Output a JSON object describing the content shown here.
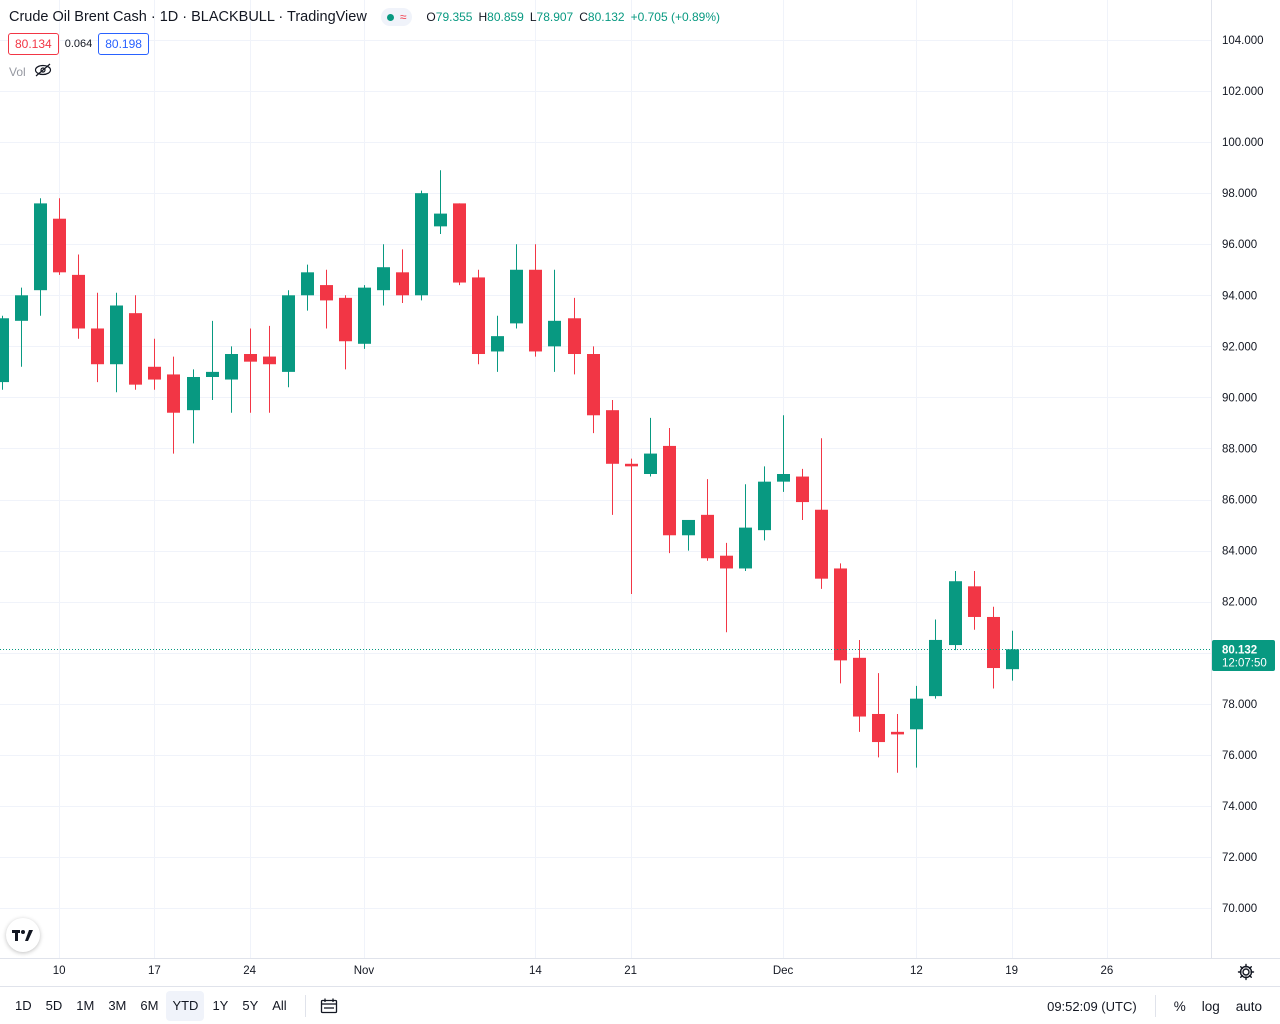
{
  "legend": {
    "symbol": "Crude Oil Brent Cash · 1D · BLACKBULL · TradingView",
    "status_wave": "≈",
    "open_label": "O",
    "open": "79.355",
    "high_label": "H",
    "high": "80.859",
    "low_label": "L",
    "low": "78.907",
    "close_label": "C",
    "close": "80.132",
    "change": "+0.705 (+0.89%)"
  },
  "quote": {
    "bid": "80.134",
    "spread": "0.064",
    "ask": "80.198"
  },
  "volume": {
    "label": "Vol",
    "icon": "eye-crossed-icon"
  },
  "colors": {
    "up": "#089981",
    "down": "#f23645",
    "grid": "#f0f3fa",
    "axis_text": "#131722",
    "accent": "#2962ff"
  },
  "chart_data": {
    "type": "candlestick",
    "interval": "1D",
    "ylim": [
      68.5,
      105
    ],
    "y_ticks": [
      "104.000",
      "102.000",
      "100.000",
      "98.000",
      "96.000",
      "94.000",
      "92.000",
      "90.000",
      "88.000",
      "86.000",
      "84.000",
      "82.000",
      "80.000",
      "78.000",
      "76.000",
      "74.000",
      "72.000",
      "70.000"
    ],
    "y_tick_values": [
      104,
      102,
      100,
      98,
      96,
      94,
      92,
      90,
      88,
      86,
      84,
      82,
      80,
      78,
      76,
      74,
      72,
      70
    ],
    "x_ticks": [
      {
        "label": "10",
        "index": 3
      },
      {
        "label": "17",
        "index": 8
      },
      {
        "label": "24",
        "index": 13
      },
      {
        "label": "Nov",
        "index": 19
      },
      {
        "label": "14",
        "index": 28
      },
      {
        "label": "21",
        "index": 33
      },
      {
        "label": "Dec",
        "index": 41
      },
      {
        "label": "12",
        "index": 48
      },
      {
        "label": "19",
        "index": 53
      },
      {
        "label": "26",
        "index": 58
      }
    ],
    "candles": [
      {
        "o": 90.6,
        "h": 93.2,
        "l": 90.3,
        "c": 93.1
      },
      {
        "o": 93.0,
        "h": 94.3,
        "l": 91.2,
        "c": 94.0
      },
      {
        "o": 94.2,
        "h": 97.8,
        "l": 93.2,
        "c": 97.6
      },
      {
        "o": 97.0,
        "h": 97.8,
        "l": 94.8,
        "c": 94.9
      },
      {
        "o": 94.8,
        "h": 95.6,
        "l": 92.3,
        "c": 92.7
      },
      {
        "o": 92.7,
        "h": 94.1,
        "l": 90.6,
        "c": 91.3
      },
      {
        "o": 91.3,
        "h": 94.1,
        "l": 90.2,
        "c": 93.6
      },
      {
        "o": 93.3,
        "h": 94.0,
        "l": 90.3,
        "c": 90.5
      },
      {
        "o": 91.2,
        "h": 92.3,
        "l": 90.3,
        "c": 90.7
      },
      {
        "o": 90.9,
        "h": 91.6,
        "l": 87.8,
        "c": 89.4
      },
      {
        "o": 89.5,
        "h": 91.1,
        "l": 88.2,
        "c": 90.8
      },
      {
        "o": 90.8,
        "h": 93.0,
        "l": 89.9,
        "c": 91.0
      },
      {
        "o": 90.7,
        "h": 92.0,
        "l": 89.4,
        "c": 91.7
      },
      {
        "o": 91.7,
        "h": 92.7,
        "l": 89.4,
        "c": 91.4
      },
      {
        "o": 91.6,
        "h": 92.8,
        "l": 89.4,
        "c": 91.3
      },
      {
        "o": 91.0,
        "h": 94.2,
        "l": 90.4,
        "c": 94.0
      },
      {
        "o": 94.0,
        "h": 95.2,
        "l": 93.4,
        "c": 94.9
      },
      {
        "o": 94.4,
        "h": 95.0,
        "l": 92.7,
        "c": 93.8
      },
      {
        "o": 93.9,
        "h": 94.0,
        "l": 91.1,
        "c": 92.2
      },
      {
        "o": 92.1,
        "h": 94.4,
        "l": 91.9,
        "c": 94.3
      },
      {
        "o": 94.2,
        "h": 96.0,
        "l": 93.6,
        "c": 95.1
      },
      {
        "o": 94.9,
        "h": 95.8,
        "l": 93.7,
        "c": 94.0
      },
      {
        "o": 94.0,
        "h": 98.1,
        "l": 93.8,
        "c": 98.0
      },
      {
        "o": 96.7,
        "h": 98.9,
        "l": 96.4,
        "c": 97.2
      },
      {
        "o": 97.6,
        "h": 97.6,
        "l": 94.4,
        "c": 94.5
      },
      {
        "o": 94.7,
        "h": 95.0,
        "l": 91.3,
        "c": 91.7
      },
      {
        "o": 91.8,
        "h": 93.2,
        "l": 91.0,
        "c": 92.4
      },
      {
        "o": 92.9,
        "h": 96.0,
        "l": 92.7,
        "c": 95.0
      },
      {
        "o": 95.0,
        "h": 96.0,
        "l": 91.6,
        "c": 91.8
      },
      {
        "o": 92.0,
        "h": 95.0,
        "l": 91.0,
        "c": 93.0
      },
      {
        "o": 93.1,
        "h": 93.9,
        "l": 90.9,
        "c": 91.7
      },
      {
        "o": 91.7,
        "h": 92.0,
        "l": 88.6,
        "c": 89.3
      },
      {
        "o": 89.5,
        "h": 89.9,
        "l": 85.4,
        "c": 87.4
      },
      {
        "o": 87.4,
        "h": 87.6,
        "l": 82.3,
        "c": 87.3
      },
      {
        "o": 87.0,
        "h": 89.2,
        "l": 86.9,
        "c": 87.8
      },
      {
        "o": 88.1,
        "h": 88.8,
        "l": 83.9,
        "c": 84.6
      },
      {
        "o": 84.6,
        "h": 85.2,
        "l": 84.0,
        "c": 85.2
      },
      {
        "o": 85.4,
        "h": 86.8,
        "l": 83.6,
        "c": 83.7
      },
      {
        "o": 83.8,
        "h": 84.3,
        "l": 80.8,
        "c": 83.3
      },
      {
        "o": 83.3,
        "h": 86.6,
        "l": 83.2,
        "c": 84.9
      },
      {
        "o": 84.8,
        "h": 87.3,
        "l": 84.4,
        "c": 86.7
      },
      {
        "o": 86.7,
        "h": 89.3,
        "l": 86.3,
        "c": 87.0
      },
      {
        "o": 86.9,
        "h": 87.2,
        "l": 85.2,
        "c": 85.9
      },
      {
        "o": 85.6,
        "h": 88.4,
        "l": 82.5,
        "c": 82.9
      },
      {
        "o": 83.3,
        "h": 83.5,
        "l": 78.8,
        "c": 79.7
      },
      {
        "o": 79.8,
        "h": 80.5,
        "l": 76.9,
        "c": 77.5
      },
      {
        "o": 77.6,
        "h": 79.2,
        "l": 75.9,
        "c": 76.5
      },
      {
        "o": 76.9,
        "h": 77.6,
        "l": 75.3,
        "c": 76.8
      },
      {
        "o": 77.0,
        "h": 78.7,
        "l": 75.5,
        "c": 78.2
      },
      {
        "o": 78.3,
        "h": 81.3,
        "l": 78.2,
        "c": 80.5
      },
      {
        "o": 80.3,
        "h": 83.2,
        "l": 80.1,
        "c": 82.8
      },
      {
        "o": 82.6,
        "h": 83.2,
        "l": 80.9,
        "c": 81.4
      },
      {
        "o": 81.4,
        "h": 81.8,
        "l": 78.6,
        "c": 79.4
      },
      {
        "o": 79.355,
        "h": 80.859,
        "l": 78.907,
        "c": 80.132
      }
    ],
    "last_price": {
      "value": 80.132,
      "label": "80.132",
      "countdown": "12:07:50"
    }
  },
  "bottom_bar": {
    "ranges": [
      "1D",
      "5D",
      "1M",
      "3M",
      "6M",
      "YTD",
      "1Y",
      "5Y",
      "All"
    ],
    "active_range": "YTD",
    "clock": "09:52:09 (UTC)",
    "percent": "%",
    "log": "log",
    "auto": "auto"
  },
  "logo_text": "TV"
}
